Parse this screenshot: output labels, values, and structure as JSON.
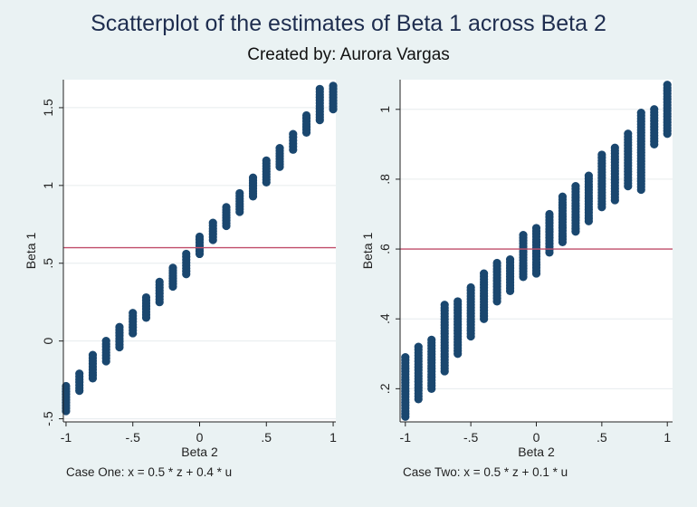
{
  "header": {
    "title": "Scatterplot of the estimates of Beta 1 across Beta 2",
    "subtitle": "Created by: Aurora Vargas"
  },
  "colors": {
    "background": "#eaf2f3",
    "plot_background": "#ffffff",
    "marker": "#1a476f",
    "reference_line": "#c04e6a",
    "grid": "#e6ecee"
  },
  "chart_data": [
    {
      "type": "scatter",
      "xlabel": "Beta 2",
      "ylabel": "Beta 1",
      "note": "Case One: x = 0.5 * z + 0.4 * u",
      "xlim": [
        -1.02,
        1.02
      ],
      "ylim": [
        -0.52,
        1.68
      ],
      "xticks": [
        -1,
        -0.5,
        0,
        0.5,
        1
      ],
      "xtick_labels": [
        "-1",
        "-.5",
        "0",
        ".5",
        "1"
      ],
      "yticks": [
        -0.5,
        0,
        0.5,
        1,
        1.5
      ],
      "ytick_labels": [
        "-.5",
        "0",
        ".5",
        "1",
        "1.5"
      ],
      "reference_line_y": 0.6,
      "grid": true,
      "x": [
        -1,
        -0.9,
        -0.8,
        -0.7,
        -0.6,
        -0.5,
        -0.4,
        -0.3,
        -0.2,
        -0.1,
        0,
        0.1,
        0.2,
        0.3,
        0.4,
        0.5,
        0.6,
        0.7,
        0.8,
        0.9,
        1
      ],
      "y_min": [
        -0.45,
        -0.32,
        -0.24,
        -0.13,
        -0.04,
        0.05,
        0.15,
        0.25,
        0.35,
        0.43,
        0.56,
        0.65,
        0.74,
        0.83,
        0.93,
        1.02,
        1.12,
        1.23,
        1.34,
        1.42,
        1.49
      ],
      "y_max": [
        -0.29,
        -0.21,
        -0.09,
        0.0,
        0.09,
        0.18,
        0.28,
        0.38,
        0.47,
        0.56,
        0.67,
        0.76,
        0.86,
        0.95,
        1.05,
        1.16,
        1.24,
        1.33,
        1.45,
        1.62,
        1.64
      ]
    },
    {
      "type": "scatter",
      "xlabel": "Beta 2",
      "ylabel": "Beta 1",
      "note": "Case Two: x = 0.5 * z + 0.1 * u",
      "xlim": [
        -1.04,
        1.04
      ],
      "ylim": [
        0.105,
        1.085
      ],
      "xticks": [
        -1,
        -0.5,
        0,
        0.5,
        1
      ],
      "xtick_labels": [
        "-1",
        "-.5",
        "0",
        ".5",
        "1"
      ],
      "yticks": [
        0.2,
        0.4,
        0.6,
        0.8,
        1
      ],
      "ytick_labels": [
        ".2",
        ".4",
        ".6",
        ".8",
        "1"
      ],
      "reference_line_y": 0.6,
      "grid": true,
      "x": [
        -1,
        -0.9,
        -0.8,
        -0.7,
        -0.6,
        -0.5,
        -0.4,
        -0.3,
        -0.2,
        -0.1,
        0,
        0.1,
        0.2,
        0.3,
        0.4,
        0.5,
        0.6,
        0.7,
        0.8,
        0.9,
        1
      ],
      "y_min": [
        0.12,
        0.17,
        0.2,
        0.25,
        0.3,
        0.35,
        0.4,
        0.45,
        0.48,
        0.52,
        0.53,
        0.59,
        0.62,
        0.65,
        0.68,
        0.72,
        0.74,
        0.78,
        0.77,
        0.9,
        0.93
      ],
      "y_max": [
        0.29,
        0.32,
        0.34,
        0.44,
        0.45,
        0.49,
        0.53,
        0.56,
        0.57,
        0.64,
        0.66,
        0.7,
        0.75,
        0.78,
        0.81,
        0.87,
        0.89,
        0.93,
        0.99,
        1.0,
        1.07
      ]
    }
  ]
}
